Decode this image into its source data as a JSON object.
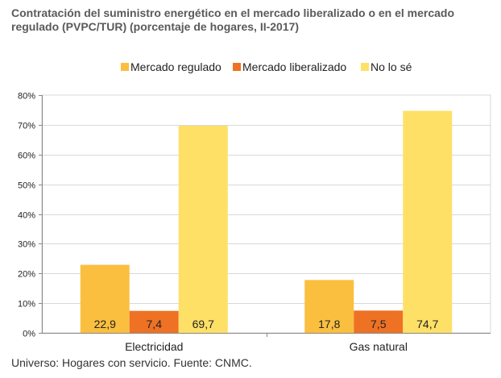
{
  "title": "Contratación del suministro energético en el mercado liberalizado o en el mercado regulado (PVPC/TUR) (porcentaje de hogares, II-2017)",
  "footer": "Universo: Hogares con servicio. Fuente: CNMC.",
  "colors": {
    "regulado": "#fbbf3f",
    "liberalizado": "#ee7124",
    "no_lo_se": "#fee066",
    "grid": "#d9d9d9",
    "axis": "#888888"
  },
  "chart_data": {
    "type": "bar",
    "title": "Contratación del suministro energético en el mercado liberalizado o en el mercado regulado (PVPC/TUR) (porcentaje de hogares, II-2017)",
    "categories": [
      "Electricidad",
      "Gas natural"
    ],
    "series": [
      {
        "name": "Mercado regulado",
        "values": [
          22.9,
          17.8
        ],
        "labels": [
          "22,9",
          "17,8"
        ]
      },
      {
        "name": "Mercado liberalizado",
        "values": [
          7.4,
          7.5
        ],
        "labels": [
          "7,4",
          "7,5"
        ]
      },
      {
        "name": "No lo sé",
        "values": [
          69.7,
          74.7
        ],
        "labels": [
          "69,7",
          "74,7"
        ]
      }
    ],
    "yticks": [
      "0%",
      "10%",
      "20%",
      "30%",
      "40%",
      "50%",
      "60%",
      "70%",
      "80%"
    ],
    "ylim": [
      0,
      80
    ],
    "grid": true,
    "legend": "top"
  }
}
